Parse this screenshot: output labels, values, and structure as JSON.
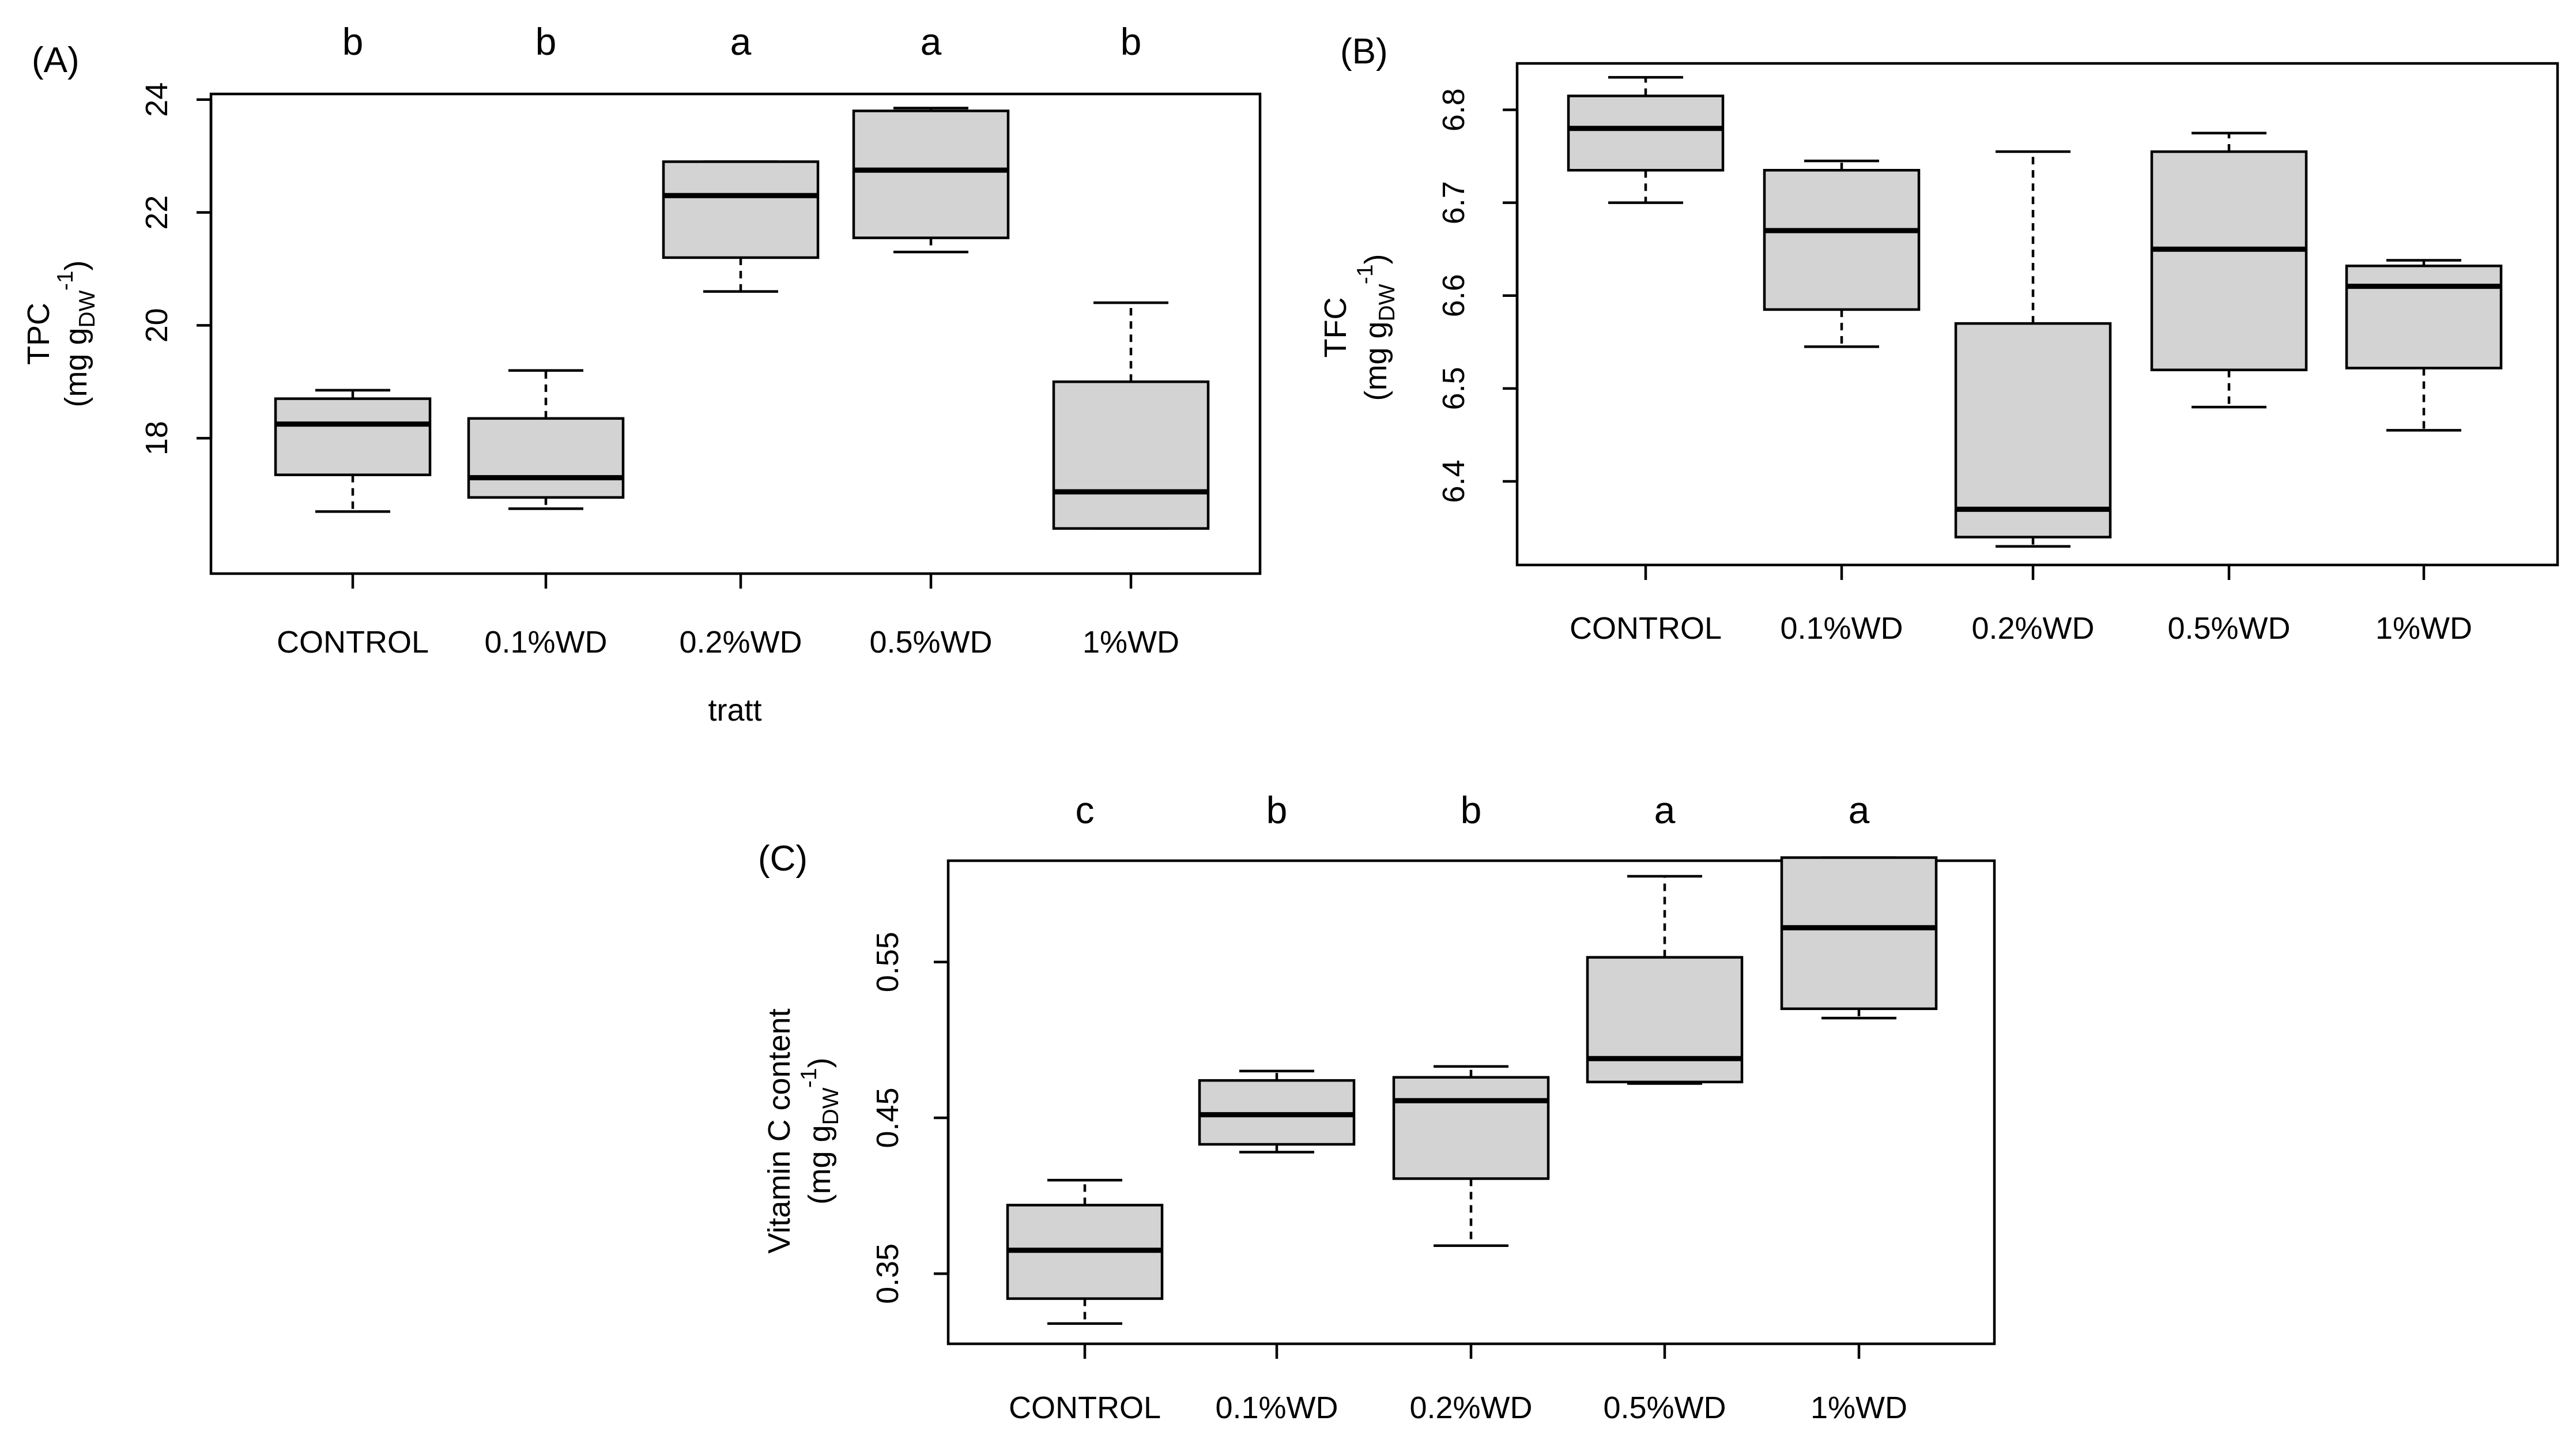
{
  "chart_data": [
    {
      "type": "boxplot",
      "panel_label": "(A)",
      "ylabel": "TPC",
      "ylabel_unit": {
        "main": "(mg g",
        "sub": "DW",
        "sup": "-1",
        "close": ")"
      },
      "xlabel": "tratt",
      "categories": [
        "CONTROL",
        "0.1%WD",
        "0.2%WD",
        "0.5%WD",
        "1%WD"
      ],
      "letters": [
        "b",
        "b",
        "a",
        "a",
        "b"
      ],
      "yticks": [
        18,
        20,
        22,
        24
      ],
      "ylim": [
        15.6,
        24.1
      ],
      "boxes": [
        {
          "min": 16.7,
          "q1": 17.35,
          "median": 18.25,
          "q3": 18.7,
          "max": 18.85
        },
        {
          "min": 16.75,
          "q1": 16.95,
          "median": 17.3,
          "q3": 18.35,
          "max": 19.2
        },
        {
          "min": 20.6,
          "q1": 21.2,
          "median": 22.3,
          "q3": 22.9,
          "max": 22.9
        },
        {
          "min": 21.3,
          "q1": 21.55,
          "median": 22.75,
          "q3": 23.8,
          "max": 23.85
        },
        {
          "min": 16.4,
          "q1": 16.4,
          "median": 17.05,
          "q3": 19.0,
          "max": 20.4
        }
      ]
    },
    {
      "type": "boxplot",
      "panel_label": "(B)",
      "ylabel": "TFC",
      "ylabel_unit": {
        "main": "(mg g",
        "sub": "DW",
        "sup": "-1",
        "close": ")"
      },
      "xlabel": "",
      "categories": [
        "CONTROL",
        "0.1%WD",
        "0.2%WD",
        "0.5%WD",
        "1%WD"
      ],
      "letters": [],
      "yticks": [
        6.4,
        6.5,
        6.6,
        6.7,
        6.8
      ],
      "ylim": [
        6.31,
        6.85
      ],
      "boxes": [
        {
          "min": 6.7,
          "q1": 6.735,
          "median": 6.78,
          "q3": 6.815,
          "max": 6.835
        },
        {
          "min": 6.545,
          "q1": 6.585,
          "median": 6.67,
          "q3": 6.735,
          "max": 6.745
        },
        {
          "min": 6.33,
          "q1": 6.34,
          "median": 6.37,
          "q3": 6.57,
          "max": 6.755
        },
        {
          "min": 6.48,
          "q1": 6.52,
          "median": 6.65,
          "q3": 6.755,
          "max": 6.775
        },
        {
          "min": 6.455,
          "q1": 6.522,
          "median": 6.61,
          "q3": 6.632,
          "max": 6.638
        }
      ]
    },
    {
      "type": "boxplot",
      "panel_label": "(C)",
      "ylabel": "Vitamin C content",
      "ylabel_unit": {
        "main": "(mg g",
        "sub": "DW",
        "sup": "-1",
        "close": ")"
      },
      "xlabel": "",
      "categories": [
        "CONTROL",
        "0.1%WD",
        "0.2%WD",
        "0.5%WD",
        "1%WD"
      ],
      "letters": [
        "c",
        "b",
        "b",
        "a",
        "a"
      ],
      "yticks": [
        0.35,
        0.45,
        0.55
      ],
      "ylim": [
        0.305,
        0.615
      ],
      "boxes": [
        {
          "min": 0.318,
          "q1": 0.334,
          "median": 0.365,
          "q3": 0.394,
          "max": 0.41
        },
        {
          "min": 0.428,
          "q1": 0.433,
          "median": 0.452,
          "q3": 0.474,
          "max": 0.48
        },
        {
          "min": 0.368,
          "q1": 0.411,
          "median": 0.461,
          "q3": 0.476,
          "max": 0.483
        },
        {
          "min": 0.472,
          "q1": 0.473,
          "median": 0.488,
          "q3": 0.553,
          "max": 0.605
        },
        {
          "min": 0.514,
          "q1": 0.52,
          "median": 0.572,
          "q3": 0.617,
          "max": 0.617
        }
      ]
    }
  ]
}
